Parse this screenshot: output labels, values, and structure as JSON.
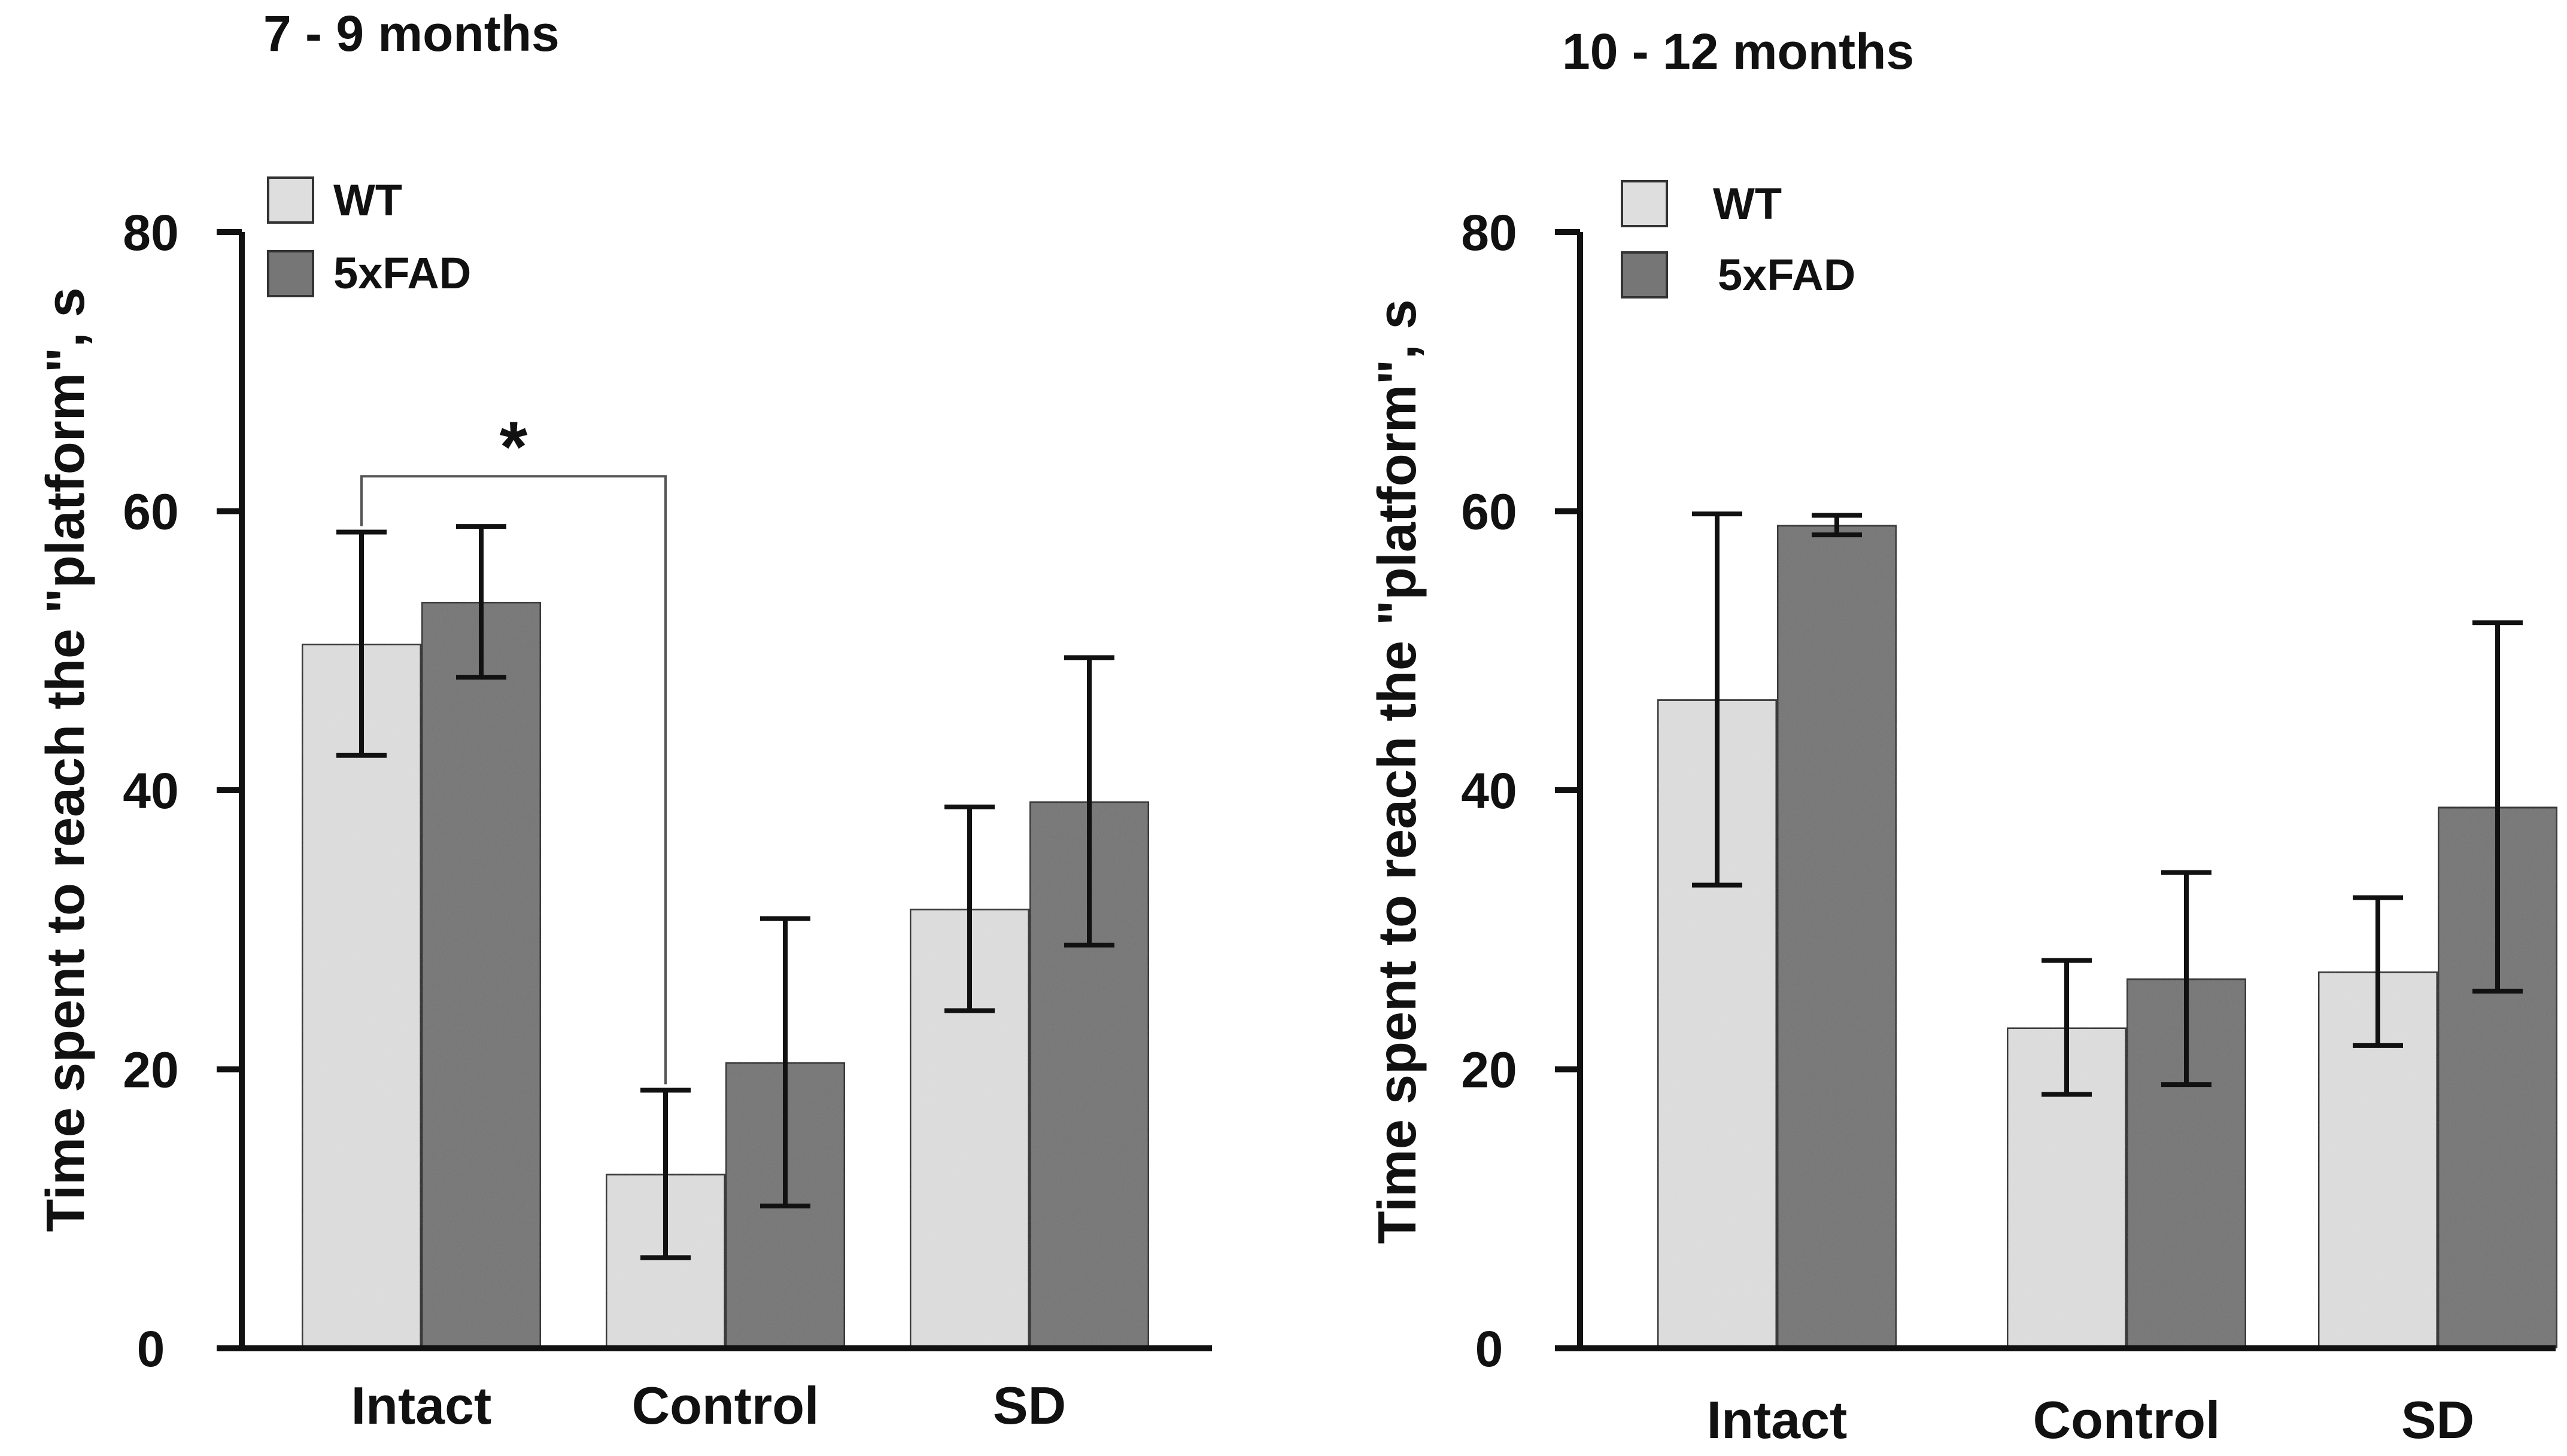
{
  "chart_data": [
    {
      "type": "bar",
      "title": "7 - 9 months",
      "xlabel": "",
      "ylabel": "Time spent to reach the \"platform\", s",
      "ylim": [
        0,
        80
      ],
      "yticks": [
        0,
        20,
        40,
        60,
        80
      ],
      "categories": [
        "Intact",
        "Control",
        "SD"
      ],
      "series": [
        {
          "name": "WT",
          "values": [
            50.5,
            12.5,
            31.5
          ],
          "errors": [
            8,
            6,
            7.3
          ],
          "color": "#dedede"
        },
        {
          "name": "5xFAD",
          "values": [
            53.5,
            20.5,
            39.2
          ],
          "errors": [
            5.4,
            10.3,
            10.3
          ],
          "color": "#767676"
        }
      ],
      "legend": "top-left",
      "grid": false,
      "annotations": [
        {
          "text": "*",
          "from": {
            "category": "Intact",
            "series": "WT"
          },
          "to": {
            "category": "Control",
            "series": "WT"
          },
          "at_value": 62.5
        }
      ]
    },
    {
      "type": "bar",
      "title": "10 - 12 months",
      "xlabel": "",
      "ylabel": "Time spent to reach the \"platform\", s",
      "ylim": [
        0,
        80
      ],
      "yticks": [
        0,
        20,
        40,
        60,
        80
      ],
      "categories": [
        "Intact",
        "Control",
        "SD"
      ],
      "series": [
        {
          "name": "WT",
          "values": [
            46.5,
            23,
            27
          ],
          "errors": [
            13.3,
            4.8,
            5.3
          ],
          "color": "#dedede"
        },
        {
          "name": "5xFAD",
          "values": [
            59,
            26.5,
            38.8
          ],
          "errors": [
            0.7,
            7.6,
            13.2
          ],
          "color": "#767676"
        }
      ],
      "legend": "top-left",
      "grid": false,
      "annotations": []
    }
  ]
}
